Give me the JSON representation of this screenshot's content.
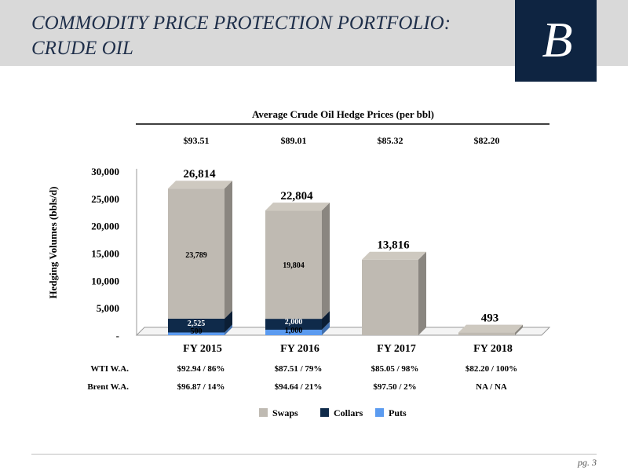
{
  "header": {
    "title_line1": "COMMODITY PRICE PROTECTION PORTFOLIO:",
    "title_line2": "CRUDE OIL",
    "logo_letter": "B"
  },
  "footer": {
    "page_label": "pg. 3"
  },
  "colors": {
    "swaps": "#bfbab2",
    "collars": "#0f2a4a",
    "puts": "#5b9bf0",
    "header_bg": "#d9d9d9",
    "logo_bg": "#0e2441"
  },
  "chart_data": {
    "type": "bar",
    "stacked": true,
    "price_header": "Average Crude Oil Hedge Prices (per bbl)",
    "prices": [
      "$93.51",
      "$89.01",
      "$85.32",
      "$82.20"
    ],
    "ylabel": "Hedging Volumes (bbls/d)",
    "ylim": [
      0,
      30000
    ],
    "yticks": [
      "-",
      "5,000",
      "10,000",
      "15,000",
      "20,000",
      "25,000",
      "30,000"
    ],
    "categories": [
      "FY 2015",
      "FY 2016",
      "FY 2017",
      "FY 2018"
    ],
    "totals": [
      "26,814",
      "22,804",
      "13,816",
      "493"
    ],
    "series": [
      {
        "name": "Puts",
        "values": [
          500,
          1000,
          0,
          0
        ],
        "labels": [
          "500",
          "1,000",
          "",
          ""
        ]
      },
      {
        "name": "Collars",
        "values": [
          2525,
          2000,
          0,
          0
        ],
        "labels": [
          "2,525",
          "2,000",
          "",
          ""
        ]
      },
      {
        "name": "Swaps",
        "values": [
          23789,
          19804,
          13816,
          493
        ],
        "labels": [
          "23,789",
          "19,804",
          "",
          ""
        ]
      }
    ],
    "rows": [
      {
        "label": "WTI W.A.",
        "values": [
          "$92.94 / 86%",
          "$87.51 / 79%",
          "$85.05 / 98%",
          "$82.20 / 100%"
        ]
      },
      {
        "label": "Brent W.A.",
        "values": [
          "$96.87 / 14%",
          "$94.64 / 21%",
          "$97.50 / 2%",
          "NA / NA"
        ]
      }
    ],
    "legend": [
      "Swaps",
      "Collars",
      "Puts"
    ],
    "legend_position": "bottom"
  }
}
